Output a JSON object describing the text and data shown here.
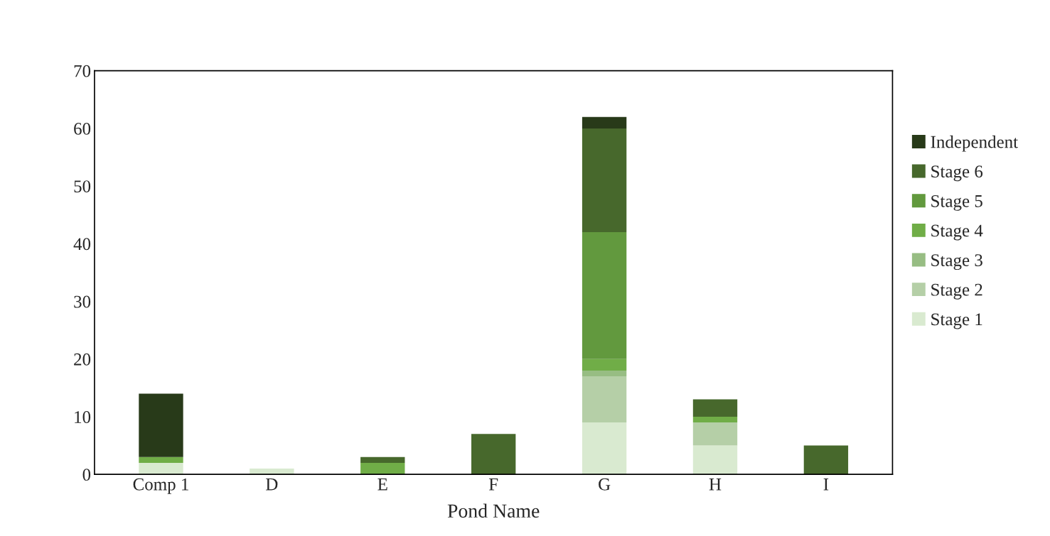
{
  "chart_data": {
    "type": "bar",
    "stacked": true,
    "xlabel": "Pond Name",
    "categories": [
      "Comp 1",
      "D",
      "E",
      "F",
      "G",
      "H",
      "I"
    ],
    "series": [
      {
        "name": "Stage 1",
        "color": "#d9ead0",
        "values": [
          2,
          1,
          0,
          0,
          9,
          5,
          0
        ]
      },
      {
        "name": "Stage 2",
        "color": "#b5cfa7",
        "values": [
          0,
          0,
          0,
          0,
          8,
          4,
          0
        ]
      },
      {
        "name": "Stage 3",
        "color": "#97bd83",
        "values": [
          0,
          0,
          0,
          0,
          1,
          0,
          0
        ]
      },
      {
        "name": "Stage 4",
        "color": "#70ad47",
        "values": [
          1,
          0,
          2,
          0,
          2,
          1,
          0
        ]
      },
      {
        "name": "Stage 5",
        "color": "#62993e",
        "values": [
          0,
          0,
          0,
          0,
          22,
          0,
          0
        ]
      },
      {
        "name": "Stage 6",
        "color": "#47682c",
        "values": [
          0,
          0,
          1,
          7,
          18,
          3,
          5
        ]
      },
      {
        "name": "Independent",
        "color": "#283a19",
        "values": [
          11,
          0,
          0,
          0,
          2,
          0,
          0
        ]
      }
    ],
    "ylim": [
      0,
      70
    ],
    "yticks": [
      0,
      10,
      20,
      30,
      40,
      50,
      60,
      70
    ],
    "grid": false,
    "legend": "right"
  }
}
